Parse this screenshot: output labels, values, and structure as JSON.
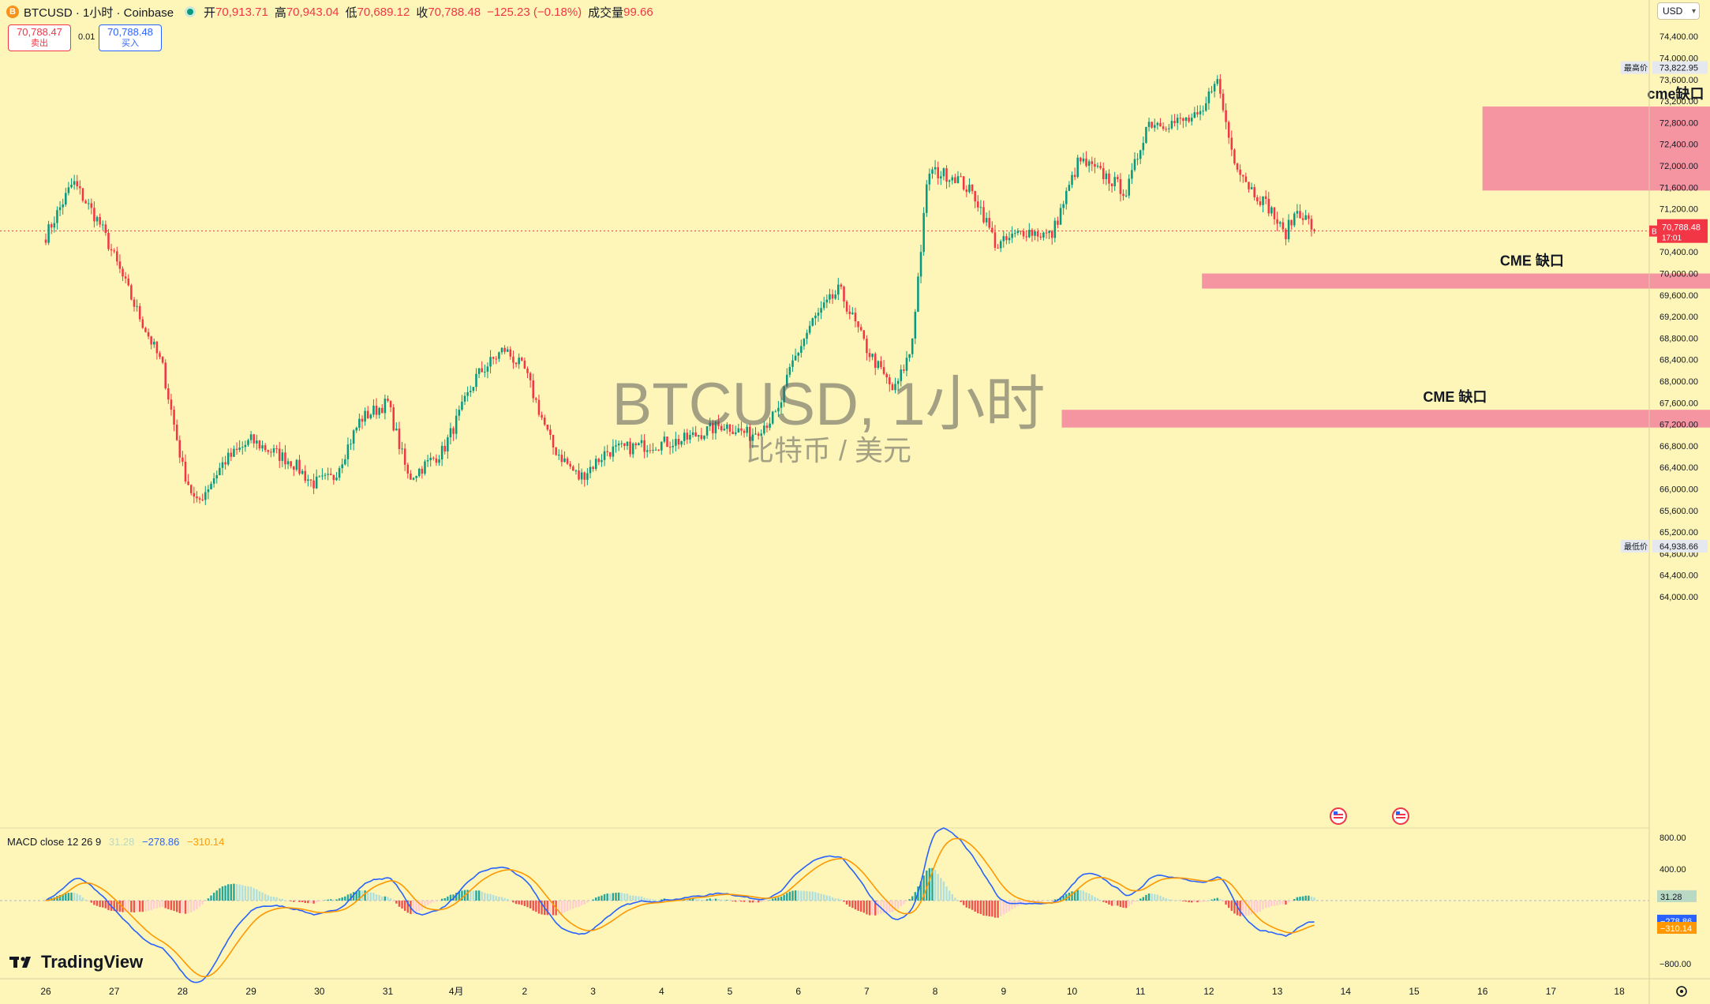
{
  "header": {
    "symbol": "BTCUSD · 1小时 · Coinbase",
    "coin_icon": "B",
    "open_label": "开",
    "open": "70,913.71",
    "high_label": "高",
    "high": "70,943.04",
    "low_label": "低",
    "low": "70,689.12",
    "close_label": "收",
    "close": "70,788.48",
    "change": "−125.23 (−0.18%)",
    "volume_label": "成交量",
    "volume": "99.66"
  },
  "trade": {
    "sell_price": "70,788.47",
    "sell_label": "卖出",
    "spread": "0.01",
    "buy_price": "70,788.48",
    "buy_label": "买入"
  },
  "currency_button": "USD",
  "watermark": {
    "title": "BTCUSD, 1小时",
    "subtitle": "比特币 / 美元"
  },
  "branding": {
    "logo_text": "TradingView"
  },
  "price_axis": {
    "labels": [
      "74,400.00",
      "74,000.00",
      "73,600.00",
      "73,200.00",
      "72,800.00",
      "72,400.00",
      "72,000.00",
      "71,600.00",
      "71,200.00",
      "70,400.00",
      "70,000.00",
      "69,600.00",
      "69,200.00",
      "68,800.00",
      "68,400.00",
      "68,000.00",
      "67,600.00",
      "67,200.00",
      "66,800.00",
      "66,400.00",
      "66,000.00",
      "65,600.00",
      "65,200.00",
      "64,800.00",
      "64,400.00",
      "64,000.00"
    ],
    "high_marker": {
      "label": "最高价",
      "value": "73,822.95"
    },
    "low_marker": {
      "label": "最低价",
      "value": "64,938.66"
    },
    "current": {
      "symbol": "BTCUSD",
      "price": "70,788.48",
      "countdown": "17:01"
    }
  },
  "time_axis": {
    "labels": [
      "26",
      "27",
      "28",
      "29",
      "30",
      "31",
      "4月",
      "2",
      "3",
      "4",
      "5",
      "6",
      "7",
      "8",
      "9",
      "10",
      "11",
      "12",
      "13",
      "14",
      "15",
      "16",
      "17",
      "18"
    ]
  },
  "annotations": [
    {
      "text": "cme缺口",
      "from_day": 27.0,
      "to_day": 32.3,
      "top": 73100,
      "bottom": 71540
    },
    {
      "text": "CME 缺口",
      "from_day": 22.9,
      "to_day": 32.2,
      "top": 70000,
      "bottom": 69720
    },
    {
      "text": "CME 缺口",
      "from_day": 20.85,
      "to_day": 32.0,
      "top": 67470,
      "bottom": 67140
    }
  ],
  "macd": {
    "label": "MACD close 12 26 9",
    "histogram": "31.28",
    "macd": "−278.86",
    "signal": "−310.14",
    "axis_labels": [
      "800.00",
      "400.00",
      "−800.00"
    ],
    "colors": {
      "macd": "#2962ff",
      "signal": "#ff9800",
      "hist_up": "#26a69a",
      "hist_down": "#ef5350"
    }
  },
  "colors": {
    "up": "#089981",
    "down": "#f23645",
    "zone": "#f48fa0"
  },
  "chart_data": {
    "type": "candlestick",
    "x_unit": "day index (Mar 26 = 0, Apr 1 = 6, Apr 18 = 23)",
    "ylim": [
      63900,
      74550
    ],
    "key_points": [
      {
        "day": 0.0,
        "price": 70700
      },
      {
        "day": 0.4,
        "price": 71700
      },
      {
        "day": 0.8,
        "price": 70900
      },
      {
        "day": 1.3,
        "price": 69400
      },
      {
        "day": 1.7,
        "price": 68300
      },
      {
        "day": 2.0,
        "price": 66400
      },
      {
        "day": 2.2,
        "price": 65700
      },
      {
        "day": 2.6,
        "price": 66500
      },
      {
        "day": 3.0,
        "price": 66900
      },
      {
        "day": 3.6,
        "price": 66500
      },
      {
        "day": 3.9,
        "price": 66100
      },
      {
        "day": 4.2,
        "price": 66200
      },
      {
        "day": 4.6,
        "price": 67300
      },
      {
        "day": 5.0,
        "price": 67600
      },
      {
        "day": 5.3,
        "price": 66200
      },
      {
        "day": 5.8,
        "price": 66700
      },
      {
        "day": 6.3,
        "price": 68100
      },
      {
        "day": 6.7,
        "price": 68600
      },
      {
        "day": 7.0,
        "price": 68200
      },
      {
        "day": 7.4,
        "price": 66800
      },
      {
        "day": 7.8,
        "price": 66200
      },
      {
        "day": 8.2,
        "price": 66700
      },
      {
        "day": 8.7,
        "price": 66800
      },
      {
        "day": 9.3,
        "price": 66900
      },
      {
        "day": 9.9,
        "price": 67200
      },
      {
        "day": 10.3,
        "price": 67000
      },
      {
        "day": 10.7,
        "price": 67400
      },
      {
        "day": 10.9,
        "price": 68300
      },
      {
        "day": 11.2,
        "price": 69100
      },
      {
        "day": 11.6,
        "price": 69700
      },
      {
        "day": 12.0,
        "price": 68600
      },
      {
        "day": 12.4,
        "price": 67800
      },
      {
        "day": 12.65,
        "price": 68600
      },
      {
        "day": 12.9,
        "price": 71900
      },
      {
        "day": 13.3,
        "price": 71800
      },
      {
        "day": 13.6,
        "price": 71400
      },
      {
        "day": 13.9,
        "price": 70500
      },
      {
        "day": 14.3,
        "price": 70800
      },
      {
        "day": 14.7,
        "price": 70700
      },
      {
        "day": 15.1,
        "price": 72100
      },
      {
        "day": 15.5,
        "price": 71800
      },
      {
        "day": 15.8,
        "price": 71500
      },
      {
        "day": 16.1,
        "price": 72800
      },
      {
        "day": 16.5,
        "price": 72800
      },
      {
        "day": 16.9,
        "price": 72900
      },
      {
        "day": 17.1,
        "price": 73700
      },
      {
        "day": 17.35,
        "price": 72200
      },
      {
        "day": 17.6,
        "price": 71600
      },
      {
        "day": 17.9,
        "price": 71200
      },
      {
        "day": 18.1,
        "price": 70700
      },
      {
        "day": 18.3,
        "price": 71200
      },
      {
        "day": 18.55,
        "price": 70800
      }
    ],
    "last_close": 70788.48
  }
}
